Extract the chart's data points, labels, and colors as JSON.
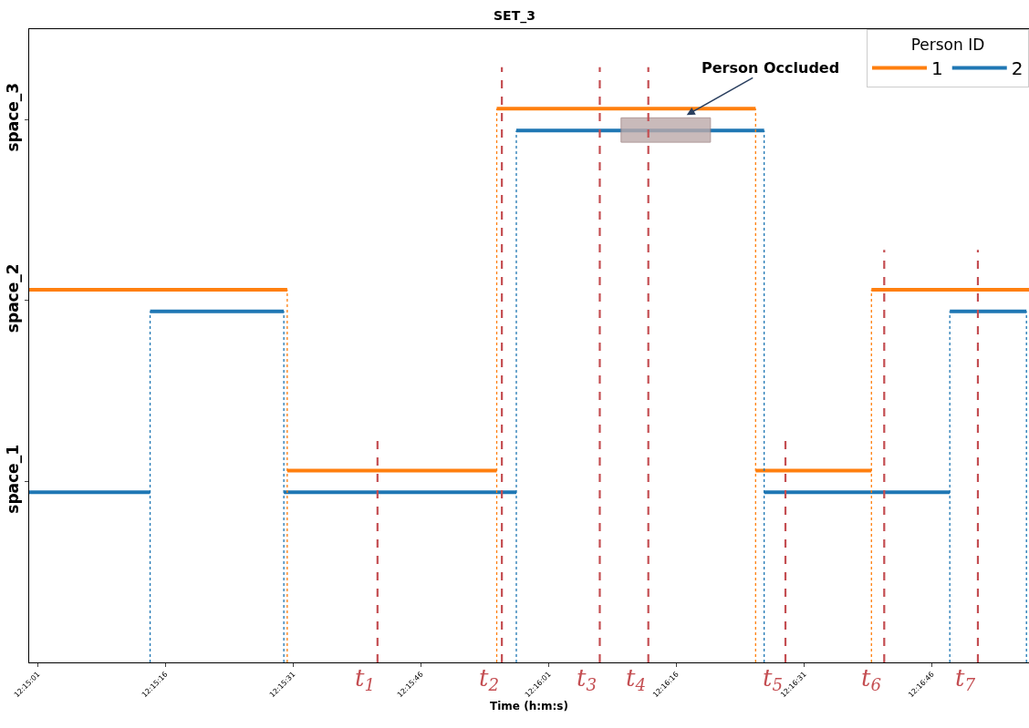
{
  "chart_data": {
    "type": "line",
    "title": "SET_3",
    "xlabel": "Time (h:m:s)",
    "legend_title": "Person ID",
    "legend": "top right",
    "xlim": [
      12.25,
      12.282611
    ],
    "xticks": [
      {
        "value": 12.250278,
        "label": "12:15:01"
      },
      {
        "value": 12.254444,
        "label": "12:15:16"
      },
      {
        "value": 12.258611,
        "label": "12:15:31"
      },
      {
        "value": 12.262778,
        "label": "12:15:46"
      },
      {
        "value": 12.266944,
        "label": "12:16:01"
      },
      {
        "value": 12.271111,
        "label": "12:16:16"
      },
      {
        "value": 12.275278,
        "label": "12:16:31"
      },
      {
        "value": 12.279444,
        "label": "12:16:46"
      }
    ],
    "ylim": [
      0,
      3.5
    ],
    "yticks": [
      {
        "value": 1,
        "label": "space_1"
      },
      {
        "value": 2,
        "label": "space_2"
      },
      {
        "value": 3,
        "label": "space_3"
      }
    ],
    "series": [
      {
        "name": "1",
        "color": "#ff7f0e",
        "line_style": "solid",
        "x": [
          12.25,
          12.258417,
          null,
          12.258417,
          12.26525,
          null,
          12.26525,
          12.273694,
          null,
          12.273694,
          12.277472,
          null,
          12.277472,
          12.282611
        ],
        "values": [
          2.06,
          2.06,
          null,
          1.06,
          1.06,
          null,
          3.06,
          3.06,
          null,
          1.06,
          1.06,
          null,
          2.06,
          2.06
        ]
      },
      {
        "name": "2",
        "color": "#1f77b4",
        "line_style": "solid",
        "x": [
          12.25,
          12.253944,
          null,
          12.253944,
          12.258306,
          null,
          12.258306,
          12.265889,
          null,
          12.265889,
          12.273972,
          null,
          12.273972,
          12.280028,
          null,
          12.280028,
          12.282528
        ],
        "values": [
          0.94,
          0.94,
          null,
          1.94,
          1.94,
          null,
          0.94,
          0.94,
          null,
          2.94,
          2.94,
          null,
          0.94,
          0.94,
          null,
          1.94,
          1.94
        ]
      },
      {
        "color": "#ff7f0e",
        "line_style": "dotted",
        "x": [
          12.258417,
          12.258417,
          null,
          12.26525,
          12.26525,
          null,
          12.273694,
          12.273694,
          null,
          12.277472,
          12.277472
        ],
        "values": [
          0,
          2.06,
          null,
          0,
          3.06,
          null,
          0,
          3.06,
          null,
          0,
          2.06
        ]
      },
      {
        "color": "#1f77b4",
        "line_style": "dotted",
        "x": [
          12.253944,
          12.253944,
          null,
          12.258306,
          12.258306,
          null,
          12.265889,
          12.265889,
          null,
          12.273972,
          12.273972,
          null,
          12.280028,
          12.280028,
          null,
          12.282528,
          12.282528
        ],
        "values": [
          0,
          1.94,
          null,
          0,
          1.94,
          null,
          0,
          2.94,
          null,
          0,
          2.94,
          null,
          0,
          1.94,
          null,
          0,
          1.94
        ]
      },
      {
        "color": "#bca9a9",
        "line_style": "solid",
        "x": [
          12.269306,
          12.272222
        ],
        "values": [
          null,
          null
        ],
        "lower": [
          2.875,
          2.875
        ],
        "upper": [
          3.01,
          3.01
        ]
      },
      {
        "color": "#c44e52",
        "line_style": "dashed",
        "x": [
          12.261361,
          12.261361,
          null,
          12.265417,
          12.265417,
          null,
          12.268611,
          12.268611,
          null,
          12.270194,
          12.270194,
          null,
          12.274667,
          12.274667,
          null,
          12.277889,
          12.277889,
          null,
          12.280944,
          12.280944
        ],
        "values": [
          0,
          1.26,
          null,
          0,
          3.29,
          null,
          0,
          3.29,
          null,
          0,
          3.29,
          null,
          0,
          1.26,
          null,
          0,
          2.28,
          null,
          0,
          2.28
        ]
      }
    ],
    "annotations": [
      {
        "text": "Person Occluded",
        "x": 12.271444,
        "y": 3.025
      },
      {
        "text": "t$_{1}$",
        "x": 12.261361,
        "y": 0
      },
      {
        "text": "t$_{2}$",
        "x": 12.265417,
        "y": 0
      },
      {
        "text": "t$_{3}$",
        "x": 12.268611,
        "y": 0
      },
      {
        "text": "t$_{4}$",
        "x": 12.270194,
        "y": 0
      },
      {
        "text": "t$_{5}$",
        "x": 12.274667,
        "y": 0
      },
      {
        "text": "t$_{6}$",
        "x": 12.277889,
        "y": 0
      },
      {
        "text": "t$_{7}$",
        "x": 12.280944,
        "y": 0
      }
    ]
  }
}
